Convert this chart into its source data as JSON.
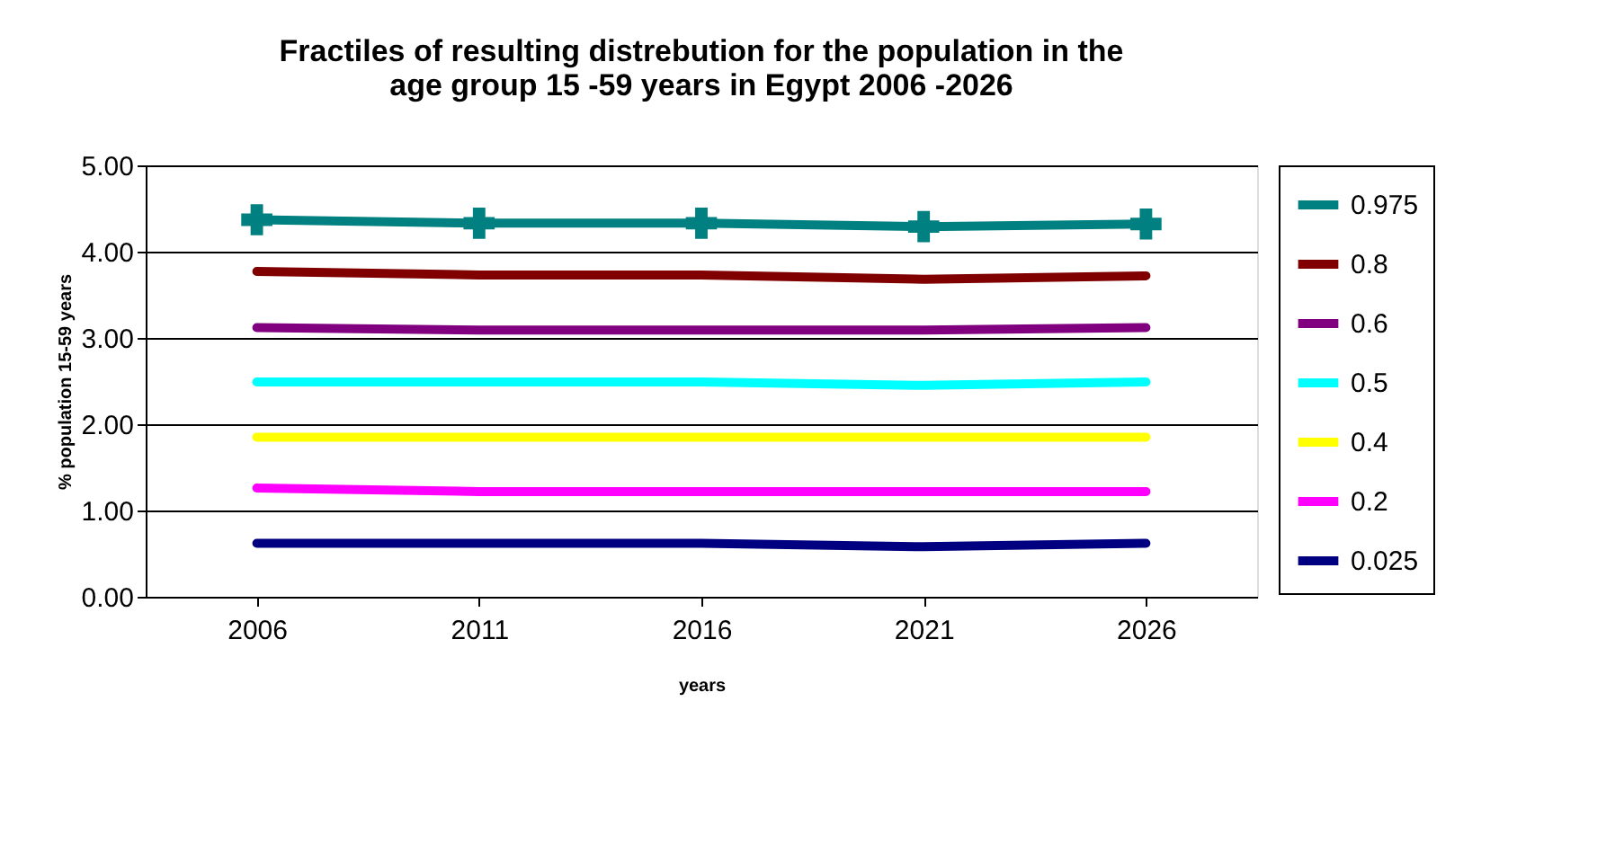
{
  "chart_data": {
    "type": "line",
    "title": [
      "Fractiles of resulting distrebution for the population in the",
      "age group 15 -59 years in Egypt 2006 -2026"
    ],
    "xlabel": "years",
    "ylabel": "% population 15-59 years",
    "categories": [
      "2006",
      "2011",
      "2016",
      "2021",
      "2026"
    ],
    "series": [
      {
        "name": "0.975",
        "color": "#008080",
        "marker": "cross",
        "values": [
          4.37,
          4.33,
          4.33,
          4.29,
          4.32
        ]
      },
      {
        "name": "0.8",
        "color": "#800000",
        "values": [
          3.77,
          3.73,
          3.73,
          3.68,
          3.72
        ]
      },
      {
        "name": "0.6",
        "color": "#800080",
        "values": [
          3.12,
          3.09,
          3.09,
          3.09,
          3.12
        ]
      },
      {
        "name": "0.5",
        "color": "#00ffff",
        "values": [
          2.49,
          2.49,
          2.49,
          2.45,
          2.49
        ]
      },
      {
        "name": "0.4",
        "color": "#ffff00",
        "values": [
          1.85,
          1.85,
          1.85,
          1.85,
          1.85
        ]
      },
      {
        "name": "0.2",
        "color": "#ff00ff",
        "values": [
          1.26,
          1.22,
          1.22,
          1.22,
          1.22
        ]
      },
      {
        "name": "0.025",
        "color": "#000080",
        "values": [
          0.62,
          0.62,
          0.62,
          0.58,
          0.62
        ]
      }
    ],
    "ylim": [
      0,
      5
    ],
    "yticks": [
      {
        "value": 0,
        "label": "0.00"
      },
      {
        "value": 1,
        "label": "1.00"
      },
      {
        "value": 2,
        "label": "2.00"
      },
      {
        "value": 3,
        "label": "3.00"
      },
      {
        "value": 4,
        "label": "4.00"
      },
      {
        "value": 5,
        "label": "5.00"
      }
    ],
    "grid": "y",
    "legend": "right",
    "line_style": "solid"
  }
}
